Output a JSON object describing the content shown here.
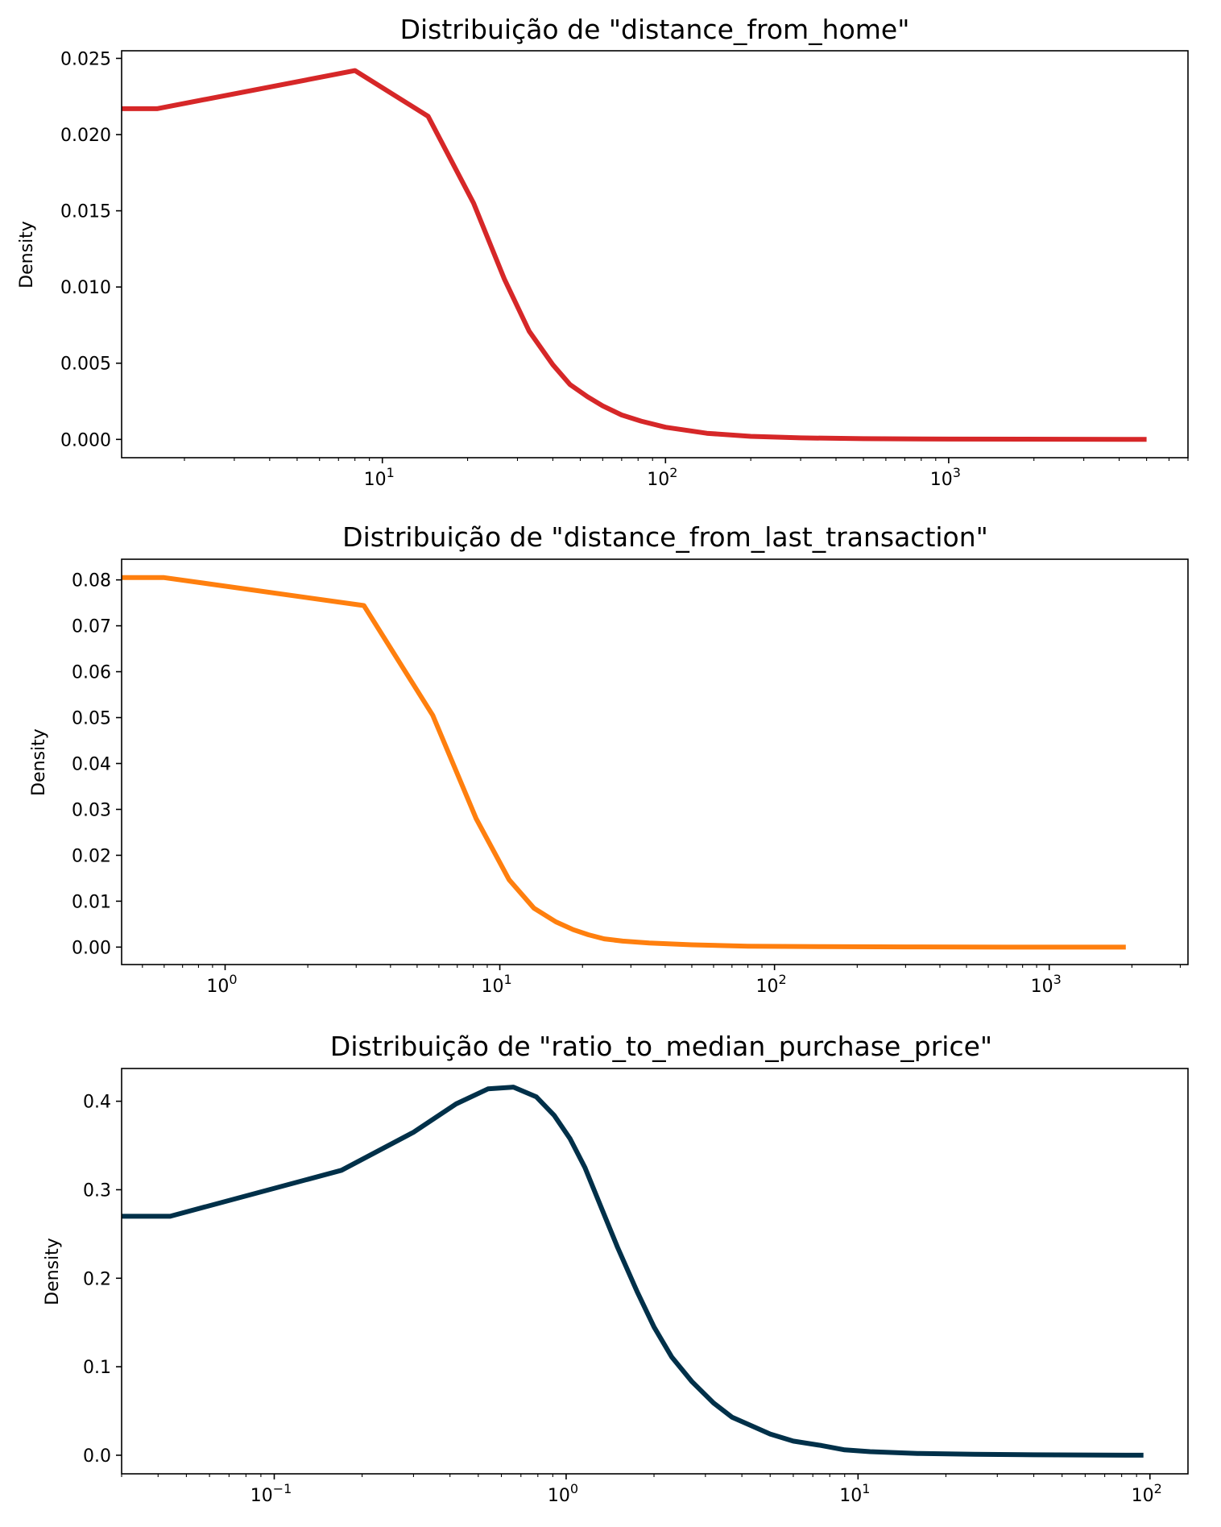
{
  "chart_data": [
    {
      "type": "line",
      "title": "Distribuição de \"distance_from_home\"",
      "xlabel": "",
      "ylabel": "Density",
      "xscale": "log",
      "xlim": [
        1.2,
        7000
      ],
      "ylim": [
        -0.0012,
        0.0255
      ],
      "yticks": [
        "0.000",
        "0.005",
        "0.010",
        "0.015",
        "0.020",
        "0.025"
      ],
      "xticks": [
        {
          "base": "10",
          "exp": "1"
        },
        {
          "base": "10",
          "exp": "2"
        },
        {
          "base": "10",
          "exp": "3"
        }
      ],
      "color": "#d62728",
      "series": [
        {
          "x": [
            1.2,
            1.6,
            8,
            14.5,
            21,
            27,
            33,
            40,
            46,
            53,
            60,
            70,
            82,
            100,
            140,
            200,
            300,
            500,
            1000,
            5000
          ],
          "y": [
            0.0217,
            0.0217,
            0.0242,
            0.0212,
            0.0155,
            0.0105,
            0.0071,
            0.0049,
            0.0036,
            0.0028,
            0.0022,
            0.0016,
            0.0012,
            0.0008,
            0.0004,
            0.0002,
            0.0001,
            5e-05,
            2e-05,
            0.0
          ]
        }
      ]
    },
    {
      "type": "line",
      "title": "Distribuição de \"distance_from_last_transaction\"",
      "xlabel": "",
      "ylabel": "Density",
      "xscale": "log",
      "xlim": [
        0.42,
        3200
      ],
      "ylim": [
        -0.0038,
        0.0845
      ],
      "yticks": [
        "0.00",
        "0.01",
        "0.02",
        "0.03",
        "0.04",
        "0.05",
        "0.06",
        "0.07",
        "0.08"
      ],
      "xticks": [
        {
          "base": "10",
          "exp": "0"
        },
        {
          "base": "10",
          "exp": "1"
        },
        {
          "base": "10",
          "exp": "2"
        },
        {
          "base": "10",
          "exp": "3"
        }
      ],
      "color": "#ff7f0e",
      "series": [
        {
          "x": [
            0.42,
            0.6,
            3.2,
            5.7,
            8.2,
            10.8,
            13.3,
            16,
            18.5,
            21,
            24,
            28,
            35,
            50,
            80,
            150,
            300,
            700,
            1900
          ],
          "y": [
            0.0805,
            0.0805,
            0.0744,
            0.0505,
            0.028,
            0.0147,
            0.0085,
            0.0055,
            0.0038,
            0.0027,
            0.0018,
            0.0013,
            0.0009,
            0.0005,
            0.0002,
            0.0001,
            5e-05,
            0.0,
            0.0
          ]
        }
      ]
    },
    {
      "type": "line",
      "title": "Distribuição de \"ratio_to_median_purchase_price\"",
      "xlabel": "",
      "ylabel": "Density",
      "xscale": "log",
      "xlim": [
        0.03,
        135
      ],
      "ylim": [
        -0.021,
        0.437
      ],
      "yticks": [
        "0.0",
        "0.1",
        "0.2",
        "0.3",
        "0.4"
      ],
      "xticks": [
        {
          "base": "10",
          "exp": "−1"
        },
        {
          "base": "10",
          "exp": "0"
        },
        {
          "base": "10",
          "exp": "1"
        },
        {
          "base": "10",
          "exp": "2"
        }
      ],
      "color": "#003049",
      "series": [
        {
          "x": [
            0.03,
            0.044,
            0.17,
            0.3,
            0.42,
            0.54,
            0.66,
            0.79,
            0.91,
            1.03,
            1.16,
            1.3,
            1.5,
            1.75,
            2.0,
            2.3,
            2.7,
            3.2,
            3.7,
            4.2,
            5.0,
            6.0,
            7.5,
            9.0,
            11,
            16,
            25,
            40,
            95
          ],
          "y": [
            0.27,
            0.27,
            0.322,
            0.365,
            0.397,
            0.414,
            0.416,
            0.405,
            0.384,
            0.358,
            0.325,
            0.285,
            0.235,
            0.185,
            0.145,
            0.111,
            0.083,
            0.059,
            0.043,
            0.035,
            0.024,
            0.016,
            0.011,
            0.006,
            0.004,
            0.002,
            0.001,
            0.0005,
            0.0
          ]
        }
      ]
    }
  ]
}
